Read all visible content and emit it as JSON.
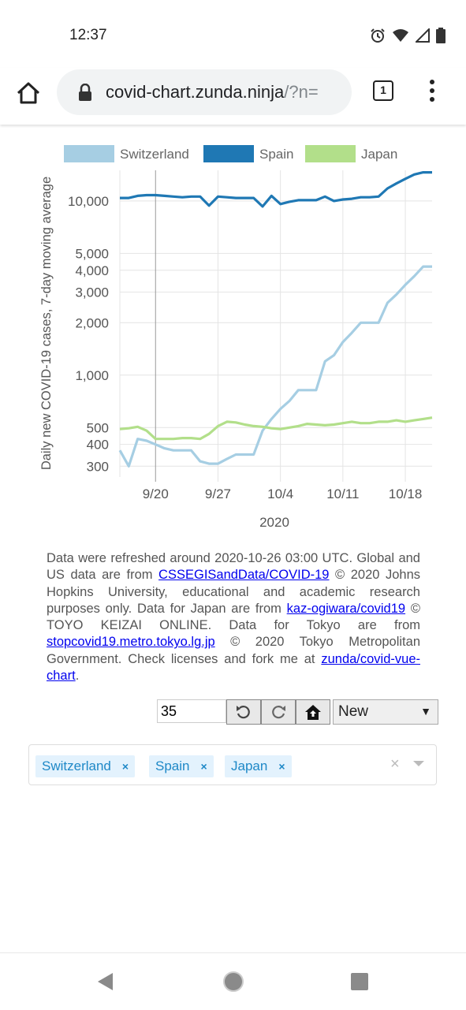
{
  "status": {
    "time": "12:37"
  },
  "browser": {
    "url_main": "covid-chart.zunda.ninja",
    "url_rest": "/?n=",
    "tab_count": "1"
  },
  "legend": [
    {
      "name": "Switzerland",
      "color": "#a6cee3"
    },
    {
      "name": "Spain",
      "color": "#1f78b4"
    },
    {
      "name": "Japan",
      "color": "#b2df8a"
    }
  ],
  "chart_data": {
    "type": "line",
    "ylabel": "Daily new COVID-19 cases, 7-day moving average",
    "xlabel": "2020",
    "y_scale": "log",
    "ylim": [
      260,
      15000
    ],
    "y_ticks": [
      300,
      400,
      500,
      1000,
      2000,
      3000,
      4000,
      5000,
      10000
    ],
    "y_tick_labels": [
      "300",
      "400",
      "500",
      "1,000",
      "2,000",
      "3,000",
      "4,000",
      "5,000",
      "10,000"
    ],
    "x_ticks": [
      "2020-09-20",
      "2020-09-27",
      "2020-10-04",
      "2020-10-11",
      "2020-10-18"
    ],
    "x_tick_labels": [
      "9/20",
      "9/27",
      "10/4",
      "10/11",
      "10/18"
    ],
    "x": [
      "2020-09-16",
      "2020-09-17",
      "2020-09-18",
      "2020-09-19",
      "2020-09-20",
      "2020-09-21",
      "2020-09-22",
      "2020-09-23",
      "2020-09-24",
      "2020-09-25",
      "2020-09-26",
      "2020-09-27",
      "2020-09-28",
      "2020-09-29",
      "2020-09-30",
      "2020-10-01",
      "2020-10-02",
      "2020-10-03",
      "2020-10-04",
      "2020-10-05",
      "2020-10-06",
      "2020-10-07",
      "2020-10-08",
      "2020-10-09",
      "2020-10-10",
      "2020-10-11",
      "2020-10-12",
      "2020-10-13",
      "2020-10-14",
      "2020-10-15",
      "2020-10-16",
      "2020-10-17",
      "2020-10-18",
      "2020-10-19",
      "2020-10-20",
      "2020-10-21"
    ],
    "series": [
      {
        "name": "Switzerland",
        "values": [
          370,
          300,
          430,
          420,
          400,
          380,
          370,
          370,
          370,
          320,
          310,
          310,
          330,
          350,
          350,
          350,
          480,
          560,
          640,
          710,
          820,
          820,
          820,
          1200,
          1300,
          1550,
          1750,
          2000,
          2000,
          2000,
          2600,
          2900,
          3300,
          3700,
          4200,
          4200
        ]
      },
      {
        "name": "Spain",
        "values": [
          10400,
          10400,
          10700,
          10800,
          10800,
          10700,
          10600,
          10500,
          10600,
          10600,
          9400,
          10600,
          10500,
          10400,
          10400,
          10400,
          9300,
          10700,
          9600,
          9900,
          10100,
          10100,
          10100,
          10600,
          10000,
          10200,
          10300,
          10500,
          10500,
          10600,
          11800,
          12600,
          13400,
          14200,
          14600,
          14600
        ]
      },
      {
        "name": "Japan",
        "values": [
          490,
          495,
          505,
          480,
          430,
          430,
          430,
          435,
          435,
          430,
          460,
          510,
          540,
          535,
          520,
          510,
          505,
          495,
          490,
          500,
          510,
          525,
          520,
          515,
          520,
          530,
          540,
          530,
          530,
          540,
          540,
          550,
          540,
          550,
          560,
          570
        ]
      }
    ]
  },
  "note": {
    "t1": "Data were refreshed around 2020-10-26 03:00 UTC. Global and US data are from ",
    "l1": "CSSEGISandData/COVID-19",
    "t2": " © 2020 Johns Hopkins University, educational and academic research purposes only. Data for Japan are from ",
    "l2": "kaz-ogiwara/covid19",
    "t3": " © TOYO KEIZAI ONLINE. Data for Tokyo are from ",
    "l3": "stopcovid19.metro.tokyo.lg.jp",
    "t4": " © 2020 Tokyo Metropolitan Government. Check licenses and fork me at ",
    "l4": "zunda/covid-vue-chart",
    "t5": "."
  },
  "controls": {
    "days_value": "35",
    "mode_selected": "New"
  },
  "selected_countries": [
    "Switzerland",
    "Spain",
    "Japan"
  ],
  "tag_remove_glyph": "×"
}
